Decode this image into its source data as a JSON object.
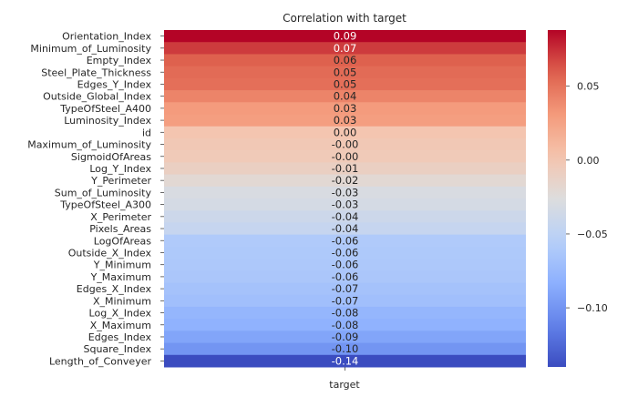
{
  "chart_data": {
    "type": "heatmap",
    "title": "Correlation with target",
    "xlabel": "",
    "ylabel": "",
    "columns": [
      "target"
    ],
    "rows": [
      "Orientation_Index",
      "Minimum_of_Luminosity",
      "Empty_Index",
      "Steel_Plate_Thickness",
      "Edges_Y_Index",
      "Outside_Global_Index",
      "TypeOfSteel_A400",
      "Luminosity_Index",
      "id",
      "Maximum_of_Luminosity",
      "SigmoidOfAreas",
      "Log_Y_Index",
      "Y_Perimeter",
      "Sum_of_Luminosity",
      "TypeOfSteel_A300",
      "X_Perimeter",
      "Pixels_Areas",
      "LogOfAreas",
      "Outside_X_Index",
      "Y_Minimum",
      "Y_Maximum",
      "Edges_X_Index",
      "X_Minimum",
      "Log_X_Index",
      "X_Maximum",
      "Edges_Index",
      "Square_Index",
      "Length_of_Conveyer"
    ],
    "values": [
      0.088,
      0.071,
      0.059,
      0.054,
      0.052,
      0.042,
      0.03,
      0.028,
      0.001,
      -0.002,
      -0.004,
      -0.01,
      -0.02,
      -0.03,
      -0.033,
      -0.039,
      -0.044,
      -0.06,
      -0.061,
      -0.062,
      -0.063,
      -0.067,
      -0.07,
      -0.078,
      -0.081,
      -0.09,
      -0.1,
      -0.14
    ],
    "labels": [
      "0.09",
      "0.07",
      "0.06",
      "0.05",
      "0.05",
      "0.04",
      "0.03",
      "0.03",
      "0.00",
      "-0.00",
      "-0.00",
      "-0.01",
      "-0.02",
      "-0.03",
      "-0.03",
      "-0.04",
      "-0.04",
      "-0.06",
      "-0.06",
      "-0.06",
      "-0.06",
      "-0.07",
      "-0.07",
      "-0.08",
      "-0.08",
      "-0.09",
      "-0.10",
      "-0.14"
    ],
    "colorscale": "coolwarm",
    "vmin": -0.14,
    "vmax": 0.088,
    "colorbar_ticks": [
      0.05,
      0.0,
      -0.05,
      -0.1
    ],
    "colorbar_tick_labels": [
      "0.05",
      "0.00",
      "−0.05",
      "−0.10"
    ],
    "grid": false,
    "legend": "colorbar-right"
  }
}
